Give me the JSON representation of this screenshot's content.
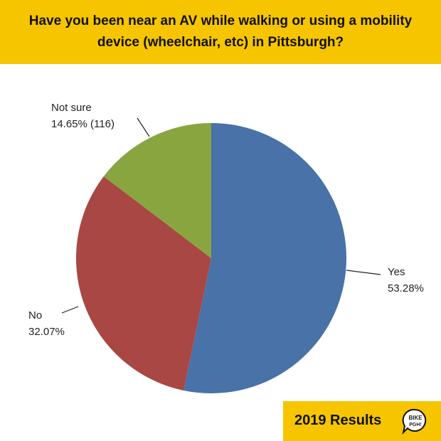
{
  "chart_data": {
    "type": "pie",
    "title": "Have you been near an AV while walking or using a mobility device (wheelchair, etc) in Pittsburgh?",
    "categories": [
      "Yes",
      "No",
      "Not sure"
    ],
    "values": [
      53.28,
      32.07,
      14.65
    ],
    "value_labels": [
      "53.28%",
      "32.07%",
      "14.65% (116)"
    ],
    "colors": [
      "#4872a8",
      "#a84744",
      "#88a540"
    ]
  },
  "footer": {
    "text": "2019 Results",
    "logo": [
      "BIKE",
      "PGH!"
    ]
  }
}
